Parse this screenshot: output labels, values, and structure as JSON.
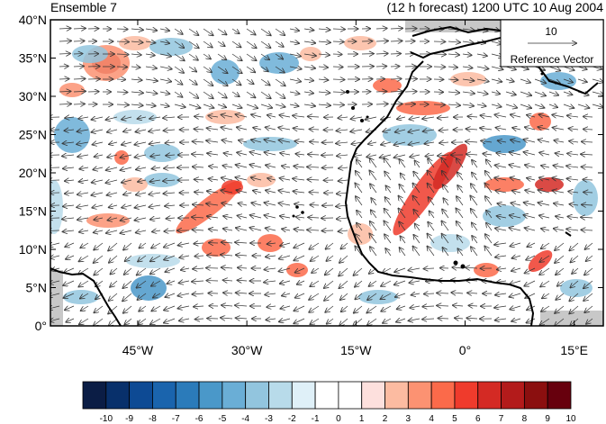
{
  "title_left": "Ensemble 7",
  "title_right": "(12 h forecast) 1200 UTC 10 Aug 2004",
  "map": {
    "lat_ticks": [
      "0°",
      "5°N",
      "10°N",
      "15°N",
      "20°N",
      "25°N",
      "30°N",
      "35°N",
      "40°N"
    ],
    "lon_ticks": [
      "45°W",
      "30°W",
      "15°W",
      "0°",
      "15°E"
    ],
    "lon_range": [
      -57,
      19
    ],
    "lat_range": [
      0,
      40
    ],
    "ocean_color": "#ffffff",
    "missing_color": "#c8c8c8"
  },
  "reference_vector": {
    "magnitude": "10",
    "label": "Reference Vector"
  },
  "colorbar": {
    "labels": [
      "-10",
      "-9",
      "-8",
      "-7",
      "-6",
      "-5",
      "-4",
      "-3",
      "-2",
      "-1",
      "0",
      "1",
      "2",
      "3",
      "4",
      "5",
      "6",
      "7",
      "8",
      "9",
      "10"
    ],
    "colors": [
      "#0b1d45",
      "#08306b",
      "#0d4a94",
      "#1a64ad",
      "#2b7bba",
      "#4a98c9",
      "#6aaed6",
      "#92c5de",
      "#b8dbea",
      "#dff0f8",
      "#ffffff",
      "#ffffff",
      "#fde0dd",
      "#fcbba1",
      "#fc9272",
      "#fb6a4a",
      "#ef3b2c",
      "#d42a24",
      "#b31b1b",
      "#8b0f0f",
      "#67000d"
    ]
  }
}
